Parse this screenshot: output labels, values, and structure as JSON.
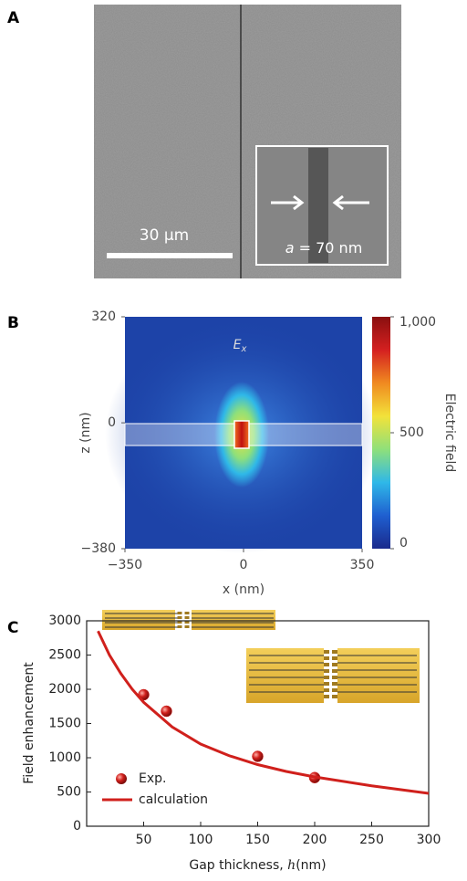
{
  "panel_a": {
    "label": "A",
    "scale_bar": "30 μm",
    "inset_variable": "a",
    "inset_text": "= 70 nm"
  },
  "chart_data": [
    {
      "type": "heatmap",
      "label": "B",
      "field_symbol": "E",
      "field_subscript": "x",
      "xlabel": "x (nm)",
      "ylabel": "z (nm)",
      "xlim": [
        -350,
        350
      ],
      "xticks": [
        {
          "value": -350,
          "label": "−350"
        },
        0,
        350
      ],
      "ylim": [
        -380,
        320
      ],
      "yticks": [
        {
          "value": -380,
          "label": "−380"
        },
        0,
        320
      ],
      "colorbar_label": "Electric field",
      "clim": [
        0,
        1000
      ],
      "cticks": [
        0,
        500,
        {
          "value": 1000,
          "label": "1,000"
        }
      ],
      "colormap": [
        "#1a2a8c",
        "#1f5fd0",
        "#2fb8e8",
        "#8fe07a",
        "#f2e23a",
        "#f08a20",
        "#d42020",
        "#8a0f0f"
      ]
    },
    {
      "type": "scatter",
      "label": "C",
      "xlabel_prefix": "Gap thickness, ",
      "xlabel_variable": "h",
      "xlabel_suffix": "(nm)",
      "ylabel": "Field enhancement",
      "xlim": [
        0,
        300
      ],
      "xticks": [
        50,
        100,
        150,
        200,
        250,
        300
      ],
      "ylim": [
        0,
        3000
      ],
      "yticks": [
        0,
        500,
        1000,
        1500,
        2000,
        2500,
        3000
      ],
      "legend": "lower left",
      "series": [
        {
          "name": "Exp.",
          "color": "#d0201c",
          "mode": "markers",
          "x": [
            50,
            70,
            150,
            200
          ],
          "values": [
            1920,
            1680,
            1020,
            710
          ]
        },
        {
          "name": "calculation",
          "color": "#d0201c",
          "mode": "line",
          "x": [
            10,
            20,
            30,
            40,
            50,
            75,
            100,
            125,
            150,
            175,
            200,
            250,
            300
          ],
          "values": [
            2850,
            2500,
            2230,
            2000,
            1810,
            1450,
            1200,
            1030,
            900,
            800,
            720,
            590,
            480
          ]
        }
      ]
    }
  ]
}
